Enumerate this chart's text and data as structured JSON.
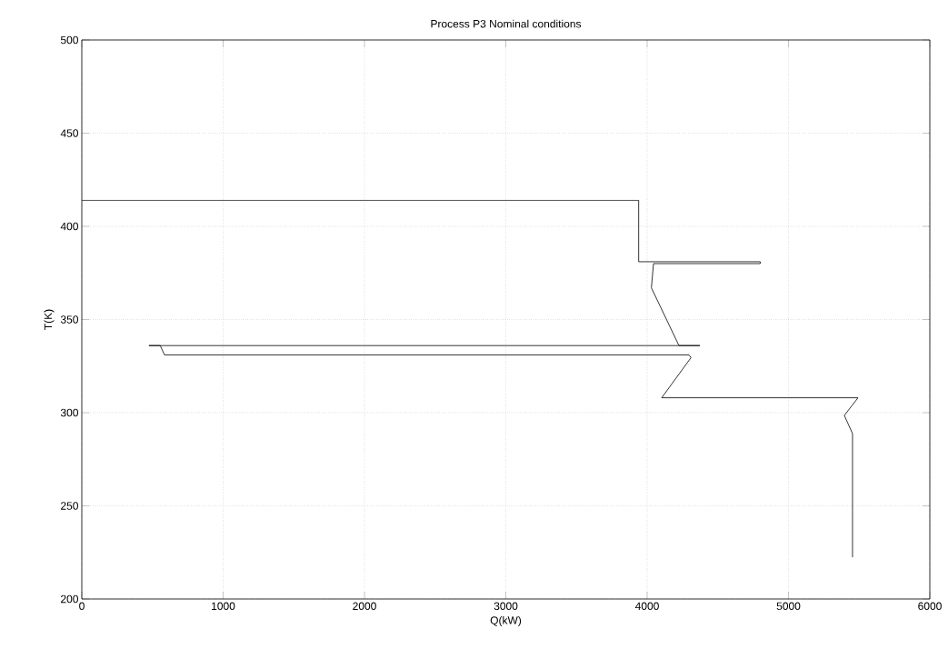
{
  "chart_data": {
    "type": "line",
    "title": "Process P3 Nominal conditions",
    "xlabel": "Q(kW)",
    "ylabel": "T(K)",
    "series": [
      {
        "color": "#000000",
        "x": [
          0,
          3940,
          3940,
          4800,
          4800,
          4045,
          4030,
          4225,
          4373,
          475,
          555,
          585,
          4296,
          4310,
          4103,
          5492,
          5395,
          5453,
          5453
        ],
        "values": [
          414,
          414,
          381,
          381,
          380,
          380,
          367,
          336,
          336,
          336,
          336,
          331,
          331,
          329.5,
          308,
          308,
          298.5,
          288.8,
          222.4
        ]
      }
    ],
    "xlim": [
      0,
      6000
    ],
    "ylim": [
      200,
      500
    ],
    "xticks": [
      0,
      1000,
      2000,
      3000,
      4000,
      5000,
      6000
    ],
    "yticks": [
      200,
      250,
      300,
      350,
      400,
      450,
      500
    ],
    "grid": true,
    "marker": "none",
    "line_style": "solid"
  }
}
